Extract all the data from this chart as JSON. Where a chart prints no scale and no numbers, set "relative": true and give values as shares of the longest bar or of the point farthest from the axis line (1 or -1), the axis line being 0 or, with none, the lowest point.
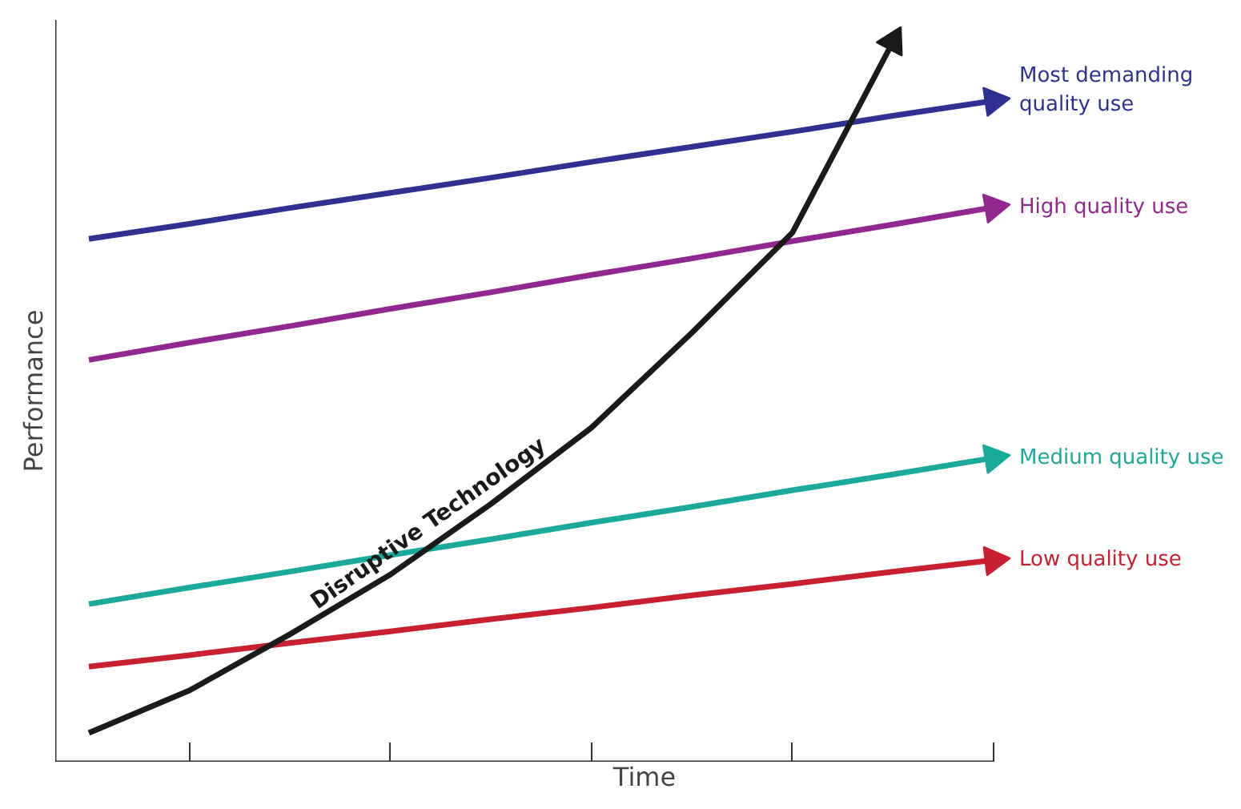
{
  "chart_data": {
    "type": "line",
    "relative": true,
    "xlabel": "Time",
    "ylabel": "Performance",
    "categories": [
      null,
      null,
      null,
      null,
      null,
      null,
      null,
      null,
      null,
      null
    ],
    "grid": false,
    "legend": "right",
    "marker": "none",
    "line_style": "solid",
    "series": [
      {
        "name": "Most demanding quality use",
        "color": "#2e3192",
        "values": [
          0.726,
          0.747,
          0.769,
          0.79,
          0.811,
          0.833,
          0.854,
          0.875,
          0.897,
          0.918
        ]
      },
      {
        "name": "High quality use",
        "color": "#92278f",
        "values": [
          0.558,
          0.582,
          0.605,
          0.629,
          0.652,
          0.676,
          0.699,
          0.723,
          0.746,
          0.77
        ]
      },
      {
        "name": "Medium quality use",
        "color": "#1aaa9b",
        "values": [
          0.219,
          0.242,
          0.264,
          0.287,
          0.309,
          0.332,
          0.354,
          0.377,
          0.399,
          0.422
        ]
      },
      {
        "name": "Low quality use",
        "color": "#c8202f",
        "values": [
          0.132,
          0.148,
          0.165,
          0.181,
          0.198,
          0.214,
          0.231,
          0.247,
          0.264,
          0.28
        ]
      },
      {
        "name": "Disruptive Technology",
        "color": "#1a1a1a",
        "values": [
          0.04,
          0.099,
          0.177,
          0.26,
          0.358,
          0.464,
          0.596,
          0.735,
          1.0,
          null
        ]
      }
    ]
  }
}
